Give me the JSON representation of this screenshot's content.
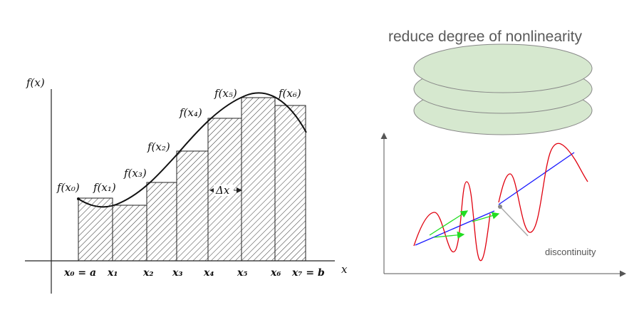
{
  "left_diagram": {
    "y_axis_label": "f(x)",
    "x_axis_label": "x",
    "delta_label": "Δx",
    "x_tick_labels": [
      "x₀ = a",
      "x₁",
      "x₂",
      "x₃",
      "x₄",
      "x₅",
      "x₆",
      "x₇ = b"
    ],
    "f_labels": [
      "f(x₀)",
      "f(x₁)",
      "f(x₃)",
      "f(x₂)",
      "f(x₄)",
      "f(x₅)",
      "f(x₆)"
    ]
  },
  "right_diagram": {
    "title": "reduce degree of nonlinearity",
    "annotation": "discontinuity",
    "colors": {
      "disc_fill": "#d6e8cf",
      "disc_stroke": "#888888",
      "curve": "#e0000e",
      "fit_line": "#1a1aff",
      "arrows": "#22dd22",
      "pointer": "#aaaaaa"
    }
  }
}
